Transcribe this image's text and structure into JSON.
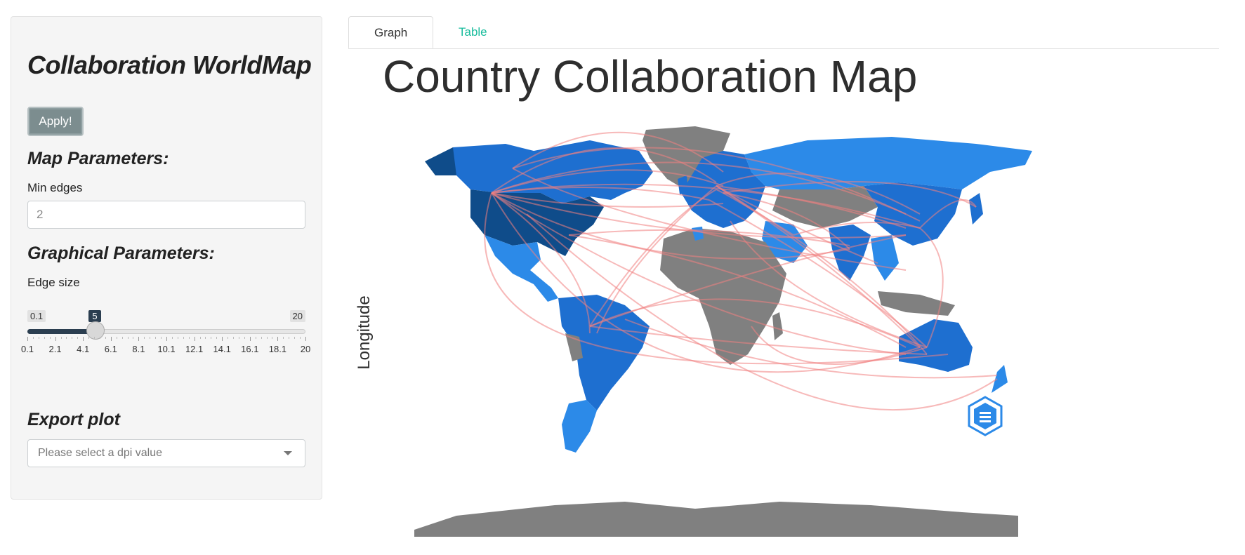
{
  "sidebar": {
    "title": "Collaboration WorldMap",
    "apply_label": "Apply!",
    "map_params_heading": "Map Parameters:",
    "min_edges_label": "Min edges",
    "min_edges_value": "2",
    "graphical_params_heading": "Graphical Parameters:",
    "edge_size_label": "Edge size",
    "edge_size": {
      "min": "0.1",
      "max": "20",
      "value": "5",
      "value_fraction": 0.246,
      "ticks": [
        "0.1",
        "2.1",
        "4.1",
        "6.1",
        "8.1",
        "10.1",
        "12.1",
        "14.1",
        "16.1",
        "18.1",
        "20"
      ]
    },
    "export_heading": "Export plot",
    "dpi_placeholder": "Please select a dpi value"
  },
  "tabs": [
    {
      "label": "Graph",
      "active": true
    },
    {
      "label": "Table",
      "active": false
    }
  ],
  "map": {
    "title": "Country Collaboration Map",
    "y_axis_label": "Longitude"
  },
  "colors": {
    "accent": "#18bc9c",
    "primary": "#2b3e50",
    "edge": "#f08080",
    "no_data_country": "#808080",
    "country_dark": "#0f4c8a",
    "country_mid": "#1e6fd0",
    "country_light": "#2c8ae8"
  },
  "icons": {
    "logo": "bibliometrix-hexagon-logo",
    "select_caret": "chevron-down-icon"
  }
}
